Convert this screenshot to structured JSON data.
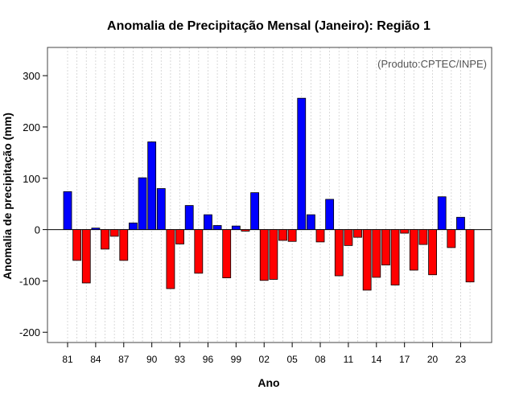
{
  "chart_data": {
    "type": "bar",
    "title": "Anomalia de Precipitação Mensal (Janeiro): Região 1",
    "credit": "(Produto:CPTEC/INPE)",
    "xlabel": "Ano",
    "ylabel": "Anomalia de precipitação (mm)",
    "ylim": [
      -220,
      355
    ],
    "y_ticks": [
      -200,
      -100,
      0,
      100,
      200,
      300
    ],
    "x_tick_labels": [
      {
        "label": "81",
        "year": 1981
      },
      {
        "label": "84",
        "year": 1984
      },
      {
        "label": "87",
        "year": 1987
      },
      {
        "label": "90",
        "year": 1990
      },
      {
        "label": "93",
        "year": 1993
      },
      {
        "label": "96",
        "year": 1996
      },
      {
        "label": "99",
        "year": 1999
      },
      {
        "label": "02",
        "year": 2002
      },
      {
        "label": "05",
        "year": 2005
      },
      {
        "label": "08",
        "year": 2008
      },
      {
        "label": "11",
        "year": 2011
      },
      {
        "label": "14",
        "year": 2014
      },
      {
        "label": "17",
        "year": 2017
      },
      {
        "label": "20",
        "year": 2020
      },
      {
        "label": "23",
        "year": 2023
      }
    ],
    "grid": true,
    "positive_color": "#0000ff",
    "negative_color": "#ff0000",
    "years": [
      1981,
      1982,
      1983,
      1984,
      1985,
      1986,
      1987,
      1988,
      1989,
      1990,
      1991,
      1992,
      1993,
      1994,
      1995,
      1996,
      1997,
      1998,
      1999,
      2000,
      2001,
      2002,
      2003,
      2004,
      2005,
      2006,
      2007,
      2008,
      2009,
      2010,
      2011,
      2012,
      2013,
      2014,
      2015,
      2016,
      2017,
      2018,
      2019,
      2020,
      2021,
      2022,
      2023,
      2024
    ],
    "values": [
      74,
      -60,
      -104,
      3,
      -38,
      -13,
      -60,
      13,
      101,
      171,
      80,
      -115,
      -28,
      47,
      -85,
      29,
      8,
      -94,
      7,
      -3,
      72,
      -99,
      -97,
      -21,
      -23,
      256,
      29,
      -24,
      59,
      -90,
      -31,
      -15,
      -118,
      -93,
      -69,
      -108,
      -7,
      -79,
      -29,
      -88,
      64,
      -35,
      24,
      -102
    ]
  }
}
